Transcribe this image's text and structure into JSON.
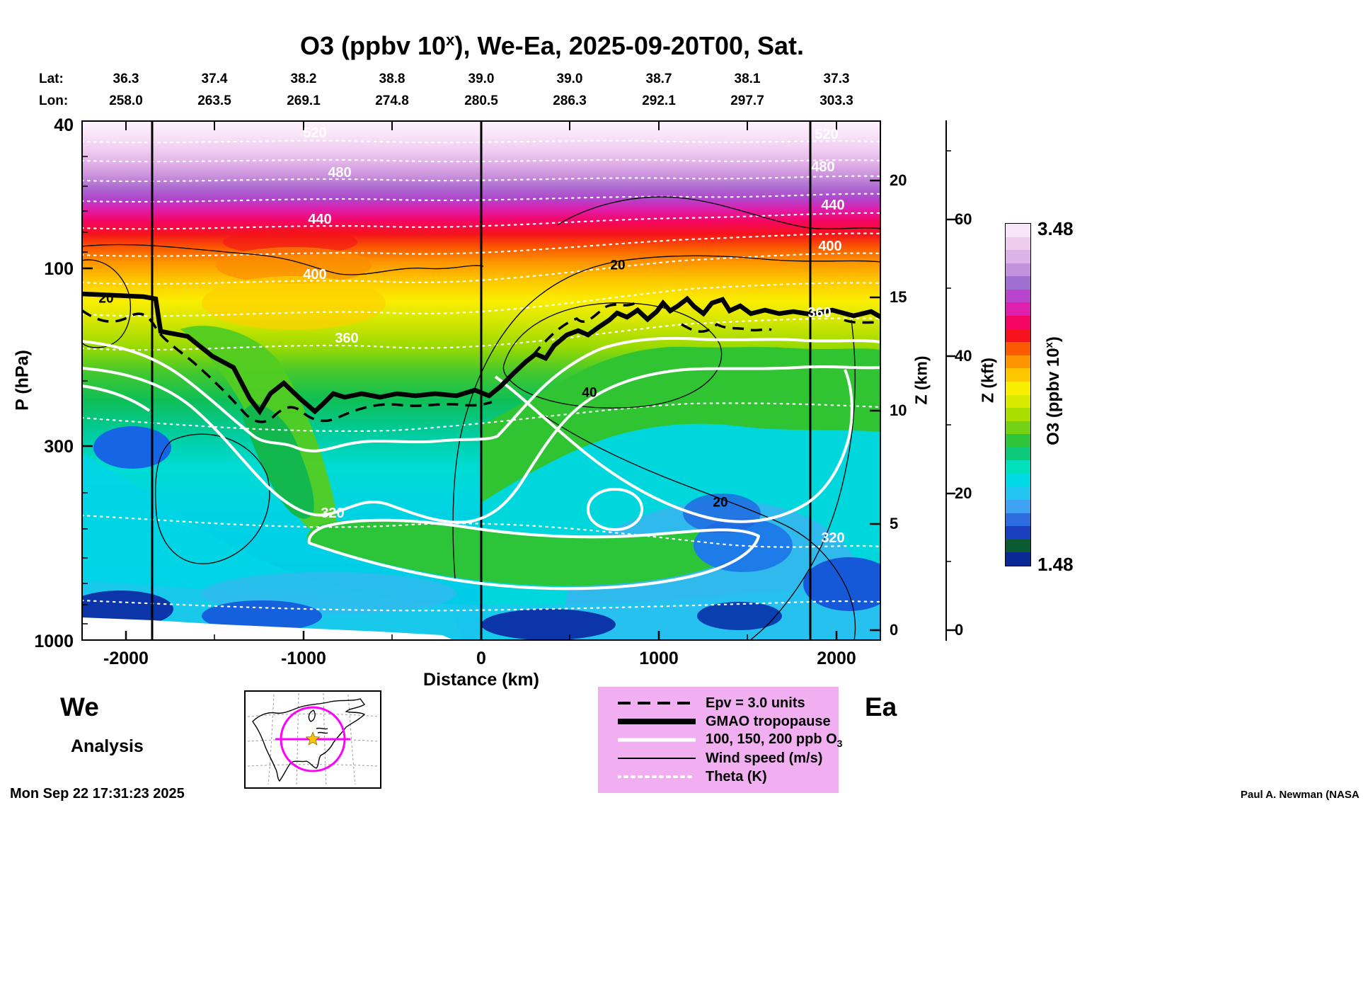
{
  "title": {
    "prefix": "O3 (ppbv 10",
    "sup": "x",
    "suffix": "), We-Ea, 2025-09-20T00, Sat."
  },
  "top_axis": {
    "lat_label": "Lat:",
    "lon_label": "Lon:",
    "lats": [
      "36.3",
      "37.4",
      "38.2",
      "38.8",
      "39.0",
      "39.0",
      "38.7",
      "38.1",
      "37.3"
    ],
    "lons": [
      "258.0",
      "263.5",
      "269.1",
      "274.8",
      "280.5",
      "286.3",
      "292.1",
      "297.7",
      "303.3"
    ]
  },
  "axes": {
    "x": {
      "label": "Distance (km)",
      "ticks": [
        "-2000",
        "-1000",
        "0",
        "1000",
        "2000"
      ]
    },
    "y_left": {
      "label": "P (hPa)",
      "ticks": [
        "40",
        "100",
        "300",
        "1000"
      ]
    },
    "y_right_km": {
      "label": "Z (km)",
      "ticks": [
        "20",
        "15",
        "10",
        "5",
        "0"
      ]
    },
    "y_right_kft": {
      "label": "Z (kft)",
      "ticks": [
        "60",
        "40",
        "20",
        "0"
      ]
    }
  },
  "colorbar": {
    "label_prefix": "O3 (ppbv 10",
    "label_sup": "x",
    "label_suffix": ")",
    "max": "3.48",
    "min": "1.48",
    "colors": [
      "#0a2896",
      "#0a5c30",
      "#1a3fbe",
      "#2e6ce2",
      "#40a2f2",
      "#22c4f2",
      "#00d9e6",
      "#00e0bc",
      "#0cc878",
      "#2fc43a",
      "#73d214",
      "#a8dd00",
      "#d9e900",
      "#f9ee00",
      "#fdc700",
      "#fc9500",
      "#fa5a00",
      "#f4131b",
      "#f50563",
      "#df1fae",
      "#b845cc",
      "#a06fd2",
      "#c292dc",
      "#dcb2e8",
      "#eeccf0",
      "#f8e6f8"
    ]
  },
  "contour_labels": {
    "theta_left": [
      "520",
      "480",
      "440",
      "400",
      "360",
      "320"
    ],
    "theta_right": [
      "520",
      "480",
      "440",
      "400",
      "360",
      "320"
    ],
    "wind": [
      "20",
      "20",
      "40",
      "20"
    ]
  },
  "corner_labels": {
    "west": "We",
    "east": "Ea",
    "analysis": "Analysis"
  },
  "legend": {
    "items": [
      {
        "label": "Epv = 3.0 units",
        "style": "dashed-black"
      },
      {
        "label": "GMAO tropopause",
        "style": "thick-black"
      },
      {
        "label_prefix": "100, 150, 200 ppb O",
        "label_sub": "3",
        "style": "white-solid"
      },
      {
        "label": "Wind speed (m/s)",
        "style": "thin-black"
      },
      {
        "label": "Theta (K)",
        "style": "dotted-white"
      }
    ]
  },
  "footer": {
    "timestamp": "Mon Sep 22 17:31:23 2025",
    "credit": "Paul A. Newman (NASA"
  },
  "accent_colors": {
    "legend_bg": "#f1aef1",
    "transect_magenta": "#ff00ff",
    "star_gold": "#ffc400"
  },
  "chart_data": {
    "type": "heatmap",
    "title": "O3 (ppbv 10^x), We-Ea, 2025-09-20T00, Sat.",
    "xlabel": "Distance (km)",
    "x_range_km": [
      -2250,
      2250
    ],
    "x_ticks_km": [
      -2000,
      -1000,
      0,
      1000,
      2000
    ],
    "ylabel_left": "P (hPa)",
    "y_left_scale": "log",
    "y_left_range_hPa": [
      40,
      1000
    ],
    "y_left_ticks_hPa": [
      40,
      100,
      300,
      1000
    ],
    "ylabel_right": "Z (km)",
    "y_right_ticks_km": [
      20,
      15,
      10,
      5,
      0
    ],
    "ylabel_far_right": "Z (kft)",
    "y_far_right_ticks_kft": [
      60,
      40,
      20,
      0
    ],
    "colorbar_label": "O3 (ppbv 10^x)",
    "colorbar_range_log10_ppbv": [
      1.48,
      3.48
    ],
    "transect": {
      "orientation": "We-Ea",
      "datetime": "2025-09-20T00",
      "day": "Sat.",
      "lat_deg": [
        36.3,
        37.4,
        38.2,
        38.8,
        39.0,
        39.0,
        38.7,
        38.1,
        37.3
      ],
      "lon_deg": [
        258.0,
        263.5,
        269.1,
        274.8,
        280.5,
        286.3,
        292.1,
        297.7,
        303.3
      ]
    },
    "contours": {
      "theta_K_labeled": [
        320,
        360,
        400,
        440,
        480,
        520
      ],
      "wind_speed_ms_labeled": [
        20,
        40
      ],
      "o3_ppb_white_contours": [
        100,
        150,
        200
      ],
      "epv_units": 3.0
    },
    "vertical_marker_lines_km": [
      -1850,
      0,
      1850
    ],
    "gmao_tropopause_profile_est": [
      {
        "distance_km": -2250,
        "hPa": 117
      },
      {
        "distance_km": -1800,
        "hPa": 149
      },
      {
        "distance_km": -1290,
        "hPa": 225
      },
      {
        "distance_km": -1250,
        "hPa": 240
      },
      {
        "distance_km": -900,
        "hPa": 234
      },
      {
        "distance_km": -260,
        "hPa": 216
      },
      {
        "distance_km": 40,
        "hPa": 218
      },
      {
        "distance_km": 300,
        "hPa": 170
      },
      {
        "distance_km": 540,
        "hPa": 147
      },
      {
        "distance_km": 780,
        "hPa": 133
      },
      {
        "distance_km": 1150,
        "hPa": 121
      },
      {
        "distance_km": 1450,
        "hPa": 125
      },
      {
        "distance_km": 1750,
        "hPa": 128
      },
      {
        "distance_km": 2250,
        "hPa": 131
      }
    ]
  }
}
